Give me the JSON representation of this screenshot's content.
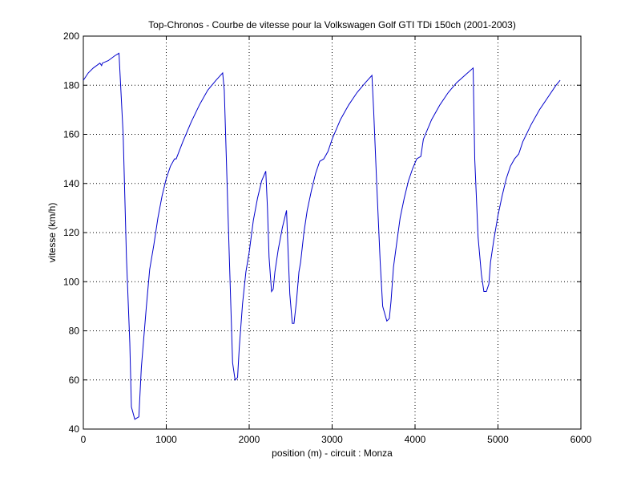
{
  "chart_data": {
    "type": "line",
    "title": "Top-Chronos - Courbe de vitesse pour la Volkswagen Golf GTI TDi 150ch (2001-2003)",
    "xlabel": "position (m) - circuit : Monza",
    "ylabel": "vitesse (km/h)",
    "xlim": [
      0,
      6000
    ],
    "ylim": [
      40,
      200
    ],
    "xticks": [
      0,
      1000,
      2000,
      3000,
      4000,
      5000,
      6000
    ],
    "xtick_labels": [
      "0",
      "1000",
      "2000",
      "3000",
      "4000",
      "5000",
      "6000"
    ],
    "yticks": [
      40,
      60,
      80,
      100,
      120,
      140,
      160,
      180,
      200
    ],
    "ytick_labels": [
      "40",
      "60",
      "80",
      "100",
      "120",
      "140",
      "160",
      "180",
      "200"
    ],
    "grid": true,
    "line_color": "#0000cc",
    "series": [
      {
        "x": [
          0,
          60,
          120,
          200,
          220,
          230,
          300,
          380,
          430,
          480,
          520,
          560,
          580,
          620,
          670,
          700,
          760,
          800,
          850,
          900,
          950,
          1000,
          1050,
          1100,
          1120,
          1200,
          1300,
          1400,
          1500,
          1600,
          1680,
          1700,
          1760,
          1800,
          1830,
          1860,
          1880,
          1920,
          1960,
          2000,
          2050,
          2100,
          2150,
          2200,
          2220,
          2240,
          2270,
          2290,
          2310,
          2350,
          2400,
          2450,
          2470,
          2490,
          2520,
          2540,
          2570,
          2600,
          2620,
          2660,
          2700,
          2750,
          2800,
          2850,
          2900,
          2950,
          3000,
          3100,
          3200,
          3300,
          3400,
          3480,
          3500,
          3540,
          3580,
          3610,
          3660,
          3690,
          3710,
          3740,
          3780,
          3820,
          3870,
          3920,
          3970,
          4020,
          4070,
          4100,
          4200,
          4300,
          4400,
          4500,
          4600,
          4700,
          4720,
          4760,
          4800,
          4830,
          4860,
          4890,
          4910,
          4950,
          5000,
          5050,
          5100,
          5150,
          5200,
          5250,
          5300,
          5400,
          5500,
          5600,
          5700,
          5750
        ],
        "y": [
          182,
          185,
          187,
          189,
          188,
          189,
          190,
          192,
          193,
          160,
          110,
          75,
          49,
          44,
          45,
          65,
          90,
          105,
          115,
          126,
          135,
          142,
          147,
          150,
          150,
          157,
          165,
          172,
          178,
          182,
          185,
          178,
          110,
          67,
          60,
          61,
          73,
          91,
          104,
          112,
          125,
          134,
          141,
          145,
          130,
          110,
          96,
          97,
          104,
          113,
          122,
          129,
          112,
          95,
          83,
          83,
          92,
          104,
          108,
          120,
          129,
          137,
          144,
          149,
          150,
          153,
          158,
          166,
          172,
          177,
          181,
          184,
          170,
          138,
          108,
          90,
          84,
          85,
          92,
          106,
          116,
          126,
          134,
          141,
          146,
          150,
          151,
          158,
          166,
          172,
          177,
          181,
          184,
          187,
          150,
          118,
          103,
          96,
          96,
          99,
          108,
          117,
          127,
          135,
          142,
          147,
          150,
          152,
          157,
          164,
          170,
          175,
          180,
          182
        ]
      }
    ]
  }
}
